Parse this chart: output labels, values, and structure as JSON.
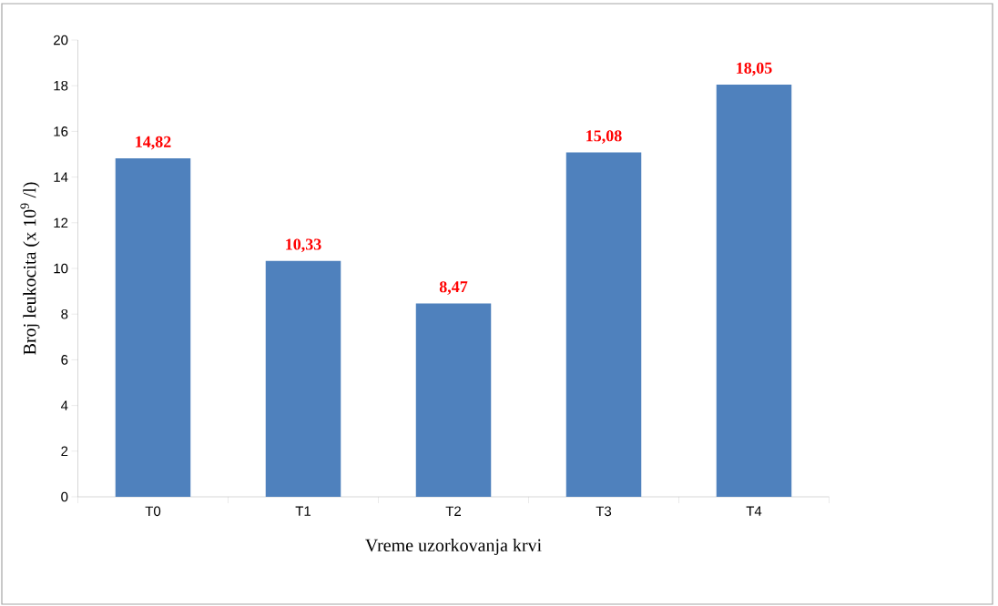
{
  "chart_data": {
    "type": "bar",
    "xlabel": "Vreme uzorkovanja krvi",
    "ylabel": "Broj leukocita (x 10$^{9}$ /l)",
    "categories": [
      "T0",
      "T1",
      "T2",
      "T3",
      "T4"
    ],
    "values": [
      14.82,
      10.33,
      8.47,
      15.08,
      18.05
    ],
    "value_labels": [
      "14,82",
      "10,33",
      "8,47",
      "15,08",
      "18,05"
    ],
    "color": "#4f81bd",
    "ylim": [
      0,
      20
    ],
    "yticks": [
      0,
      2,
      4,
      6,
      8,
      10,
      12,
      14,
      16,
      18,
      20
    ]
  }
}
